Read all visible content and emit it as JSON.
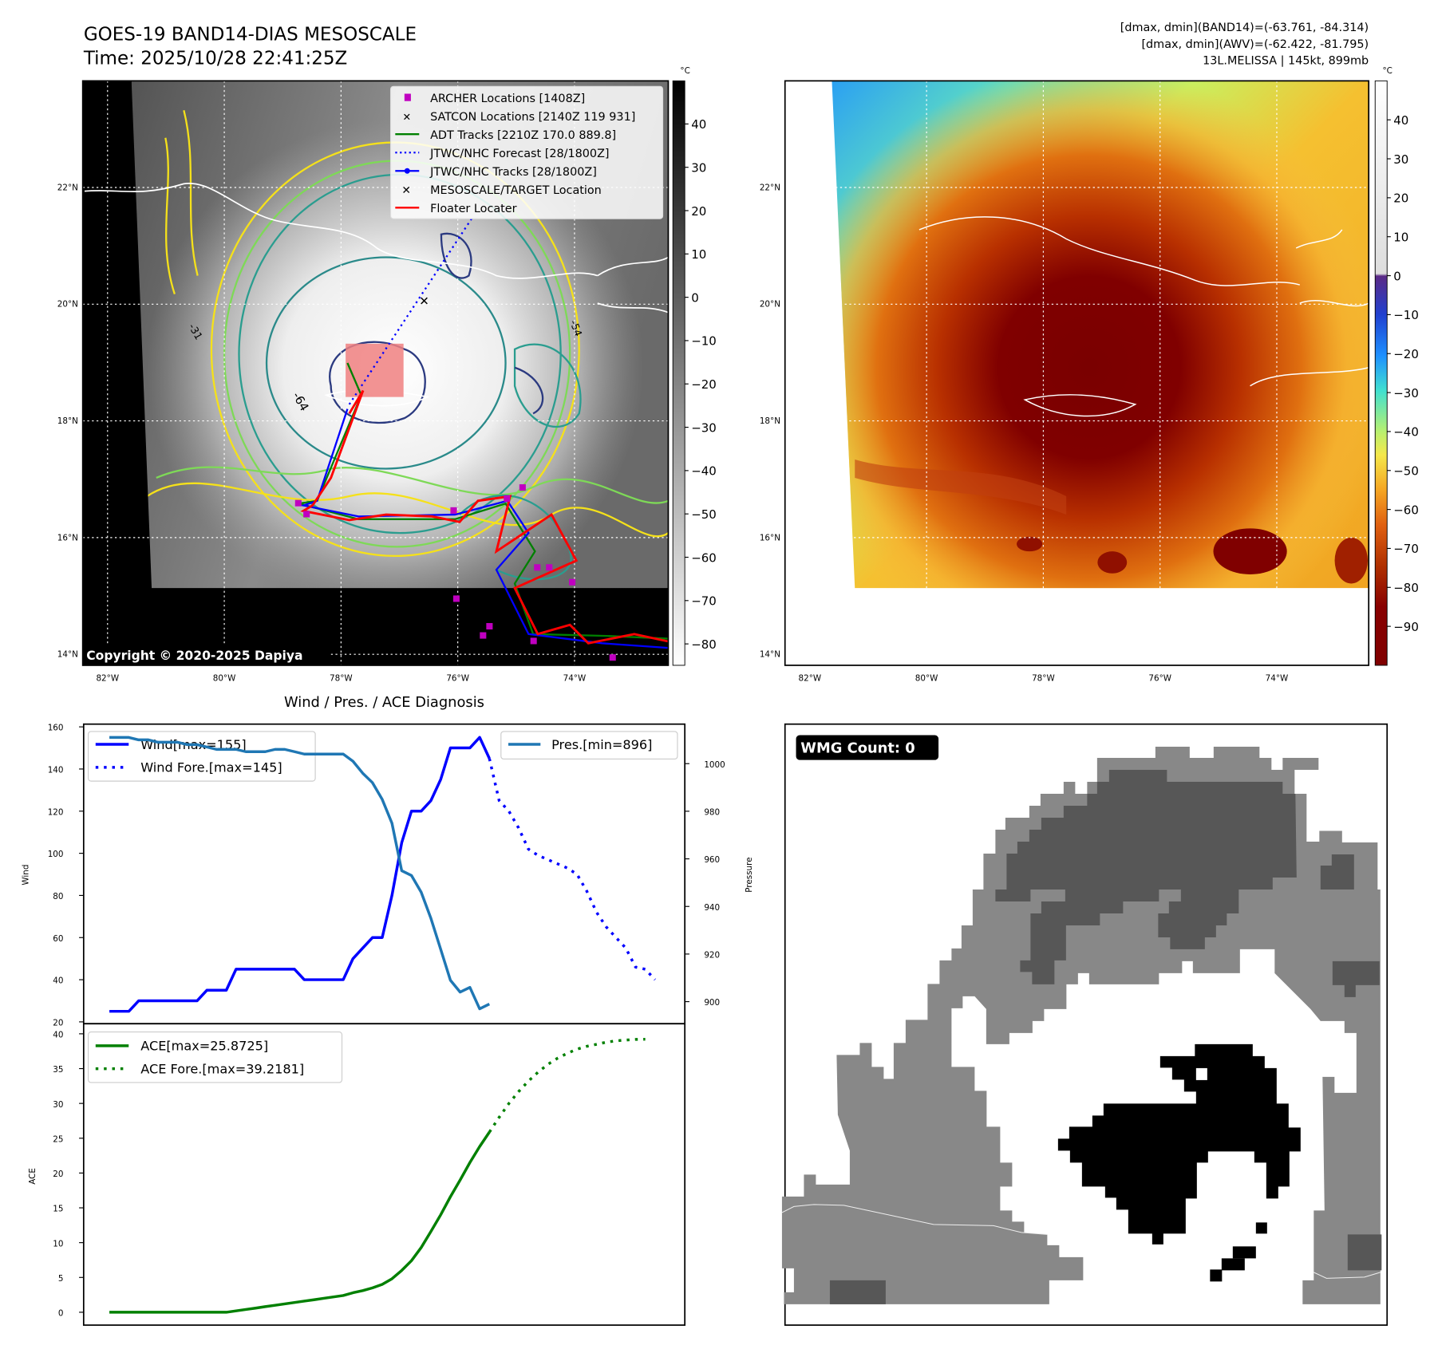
{
  "header": {
    "title_line1": "GOES-19 BAND14-DIAS MESOSCALE",
    "title_line2": "Time: 2025/10/28 22:41:25Z",
    "info_line1": "[dmax, dmin](BAND14)=(-63.761, -84.314)",
    "info_line2": "[dmax, dmin](AWV)=(-62.422, -81.795)",
    "info_line3": "13L.MELISSA | 145kt, 899mb"
  },
  "maps": {
    "lat_labels": [
      "22°N",
      "20°N",
      "18°N",
      "16°N",
      "14°N"
    ],
    "lon_labels": [
      "82°W",
      "80°W",
      "78°W",
      "76°W",
      "74°W"
    ],
    "copyright": "Copyright © 2020-2025 Dapiya",
    "contour_labels": [
      "-64",
      "-54",
      "-31"
    ],
    "legend": [
      {
        "label": "ARCHER Locations [1408Z]",
        "color": "#c000c0",
        "marker": "square"
      },
      {
        "label": "SATCON Locations [2140Z 119 931]",
        "color": "#17becf",
        "marker": "x"
      },
      {
        "label": "ADT Tracks [2210Z 170.0 889.8]",
        "color": "#008000",
        "marker": "line"
      },
      {
        "label": "JTWC/NHC Forecast [28/1800Z]",
        "color": "#0000ff",
        "marker": "dotted"
      },
      {
        "label": "JTWC/NHC Tracks [28/1800Z]",
        "color": "#0000ff",
        "marker": "line-dot"
      },
      {
        "label": "MESOSCALE/TARGET Location",
        "color": "#ff0000",
        "marker": "x"
      },
      {
        "label": "Floater Locater",
        "color": "#ff0000",
        "marker": "line"
      }
    ],
    "colorbar_left": {
      "unit": "°C",
      "ticks": [
        "40",
        "30",
        "20",
        "10",
        "0",
        "−10",
        "−20",
        "−30",
        "−40",
        "−50",
        "−60",
        "−70",
        "−80"
      ],
      "values": [
        40,
        30,
        20,
        10,
        0,
        -10,
        -20,
        -30,
        -40,
        -50,
        -60,
        -70,
        -80
      ]
    },
    "colorbar_right": {
      "unit": "°C",
      "ticks": [
        "40",
        "30",
        "20",
        "10",
        "0",
        "−10",
        "−20",
        "−30",
        "−40",
        "−50",
        "−60",
        "−70",
        "−80",
        "−90"
      ],
      "values": [
        40,
        30,
        20,
        10,
        0,
        -10,
        -20,
        -30,
        -40,
        -50,
        -60,
        -70,
        -80,
        -90
      ]
    }
  },
  "wmg": {
    "label": "WMG Count: 0"
  },
  "chart_data": [
    {
      "type": "line",
      "title": "Wind / Pres. / ACE Diagnosis",
      "ylabel": "Wind",
      "ylabel_right": "Pressure",
      "ylim": [
        20,
        160
      ],
      "ylim_right": [
        890,
        1016
      ],
      "yticks": [
        "160",
        "140",
        "120",
        "100",
        "80",
        "60",
        "40",
        "20"
      ],
      "yticks_values": [
        160,
        140,
        120,
        100,
        80,
        60,
        40,
        20
      ],
      "yticks_right": [
        "1000",
        "980",
        "960",
        "940",
        "920",
        "900"
      ],
      "yticks_right_values": [
        1000,
        980,
        960,
        940,
        920,
        900
      ],
      "series": [
        {
          "name": "Wind[max=155]",
          "color": "#0000ff",
          "style": "solid",
          "x_start": 0,
          "values": [
            25,
            25,
            25,
            30,
            30,
            30,
            30,
            30,
            30,
            30,
            35,
            35,
            35,
            45,
            45,
            45,
            45,
            45,
            45,
            45,
            40,
            40,
            40,
            40,
            40,
            50,
            55,
            60,
            60,
            80,
            105,
            120,
            120,
            125,
            135,
            150,
            150,
            150,
            155,
            145
          ]
        },
        {
          "name": "Wind Fore.[max=145]",
          "color": "#0000ff",
          "style": "dotted",
          "x_start": 39,
          "values": [
            145,
            125,
            120,
            112,
            102,
            99,
            97,
            95,
            93,
            90,
            82,
            72,
            65,
            60,
            55,
            46,
            45,
            40
          ]
        },
        {
          "name": "Pres.[min=896]",
          "color": "#1f77b4",
          "style": "solid",
          "axis": "right",
          "x_start": 0,
          "values": [
            1011,
            1011,
            1011,
            1010,
            1010,
            1009,
            1009,
            1009,
            1008,
            1008,
            1007,
            1006,
            1006,
            1006,
            1005,
            1005,
            1005,
            1006,
            1006,
            1005,
            1004,
            1004,
            1004,
            1004,
            1004,
            1001,
            996,
            992,
            985,
            975,
            955,
            953,
            946,
            935,
            922,
            909,
            904,
            906,
            897,
            899
          ]
        }
      ]
    },
    {
      "type": "line",
      "ylabel": "ACE",
      "ylim": [
        -2,
        40
      ],
      "yticks": [
        "40",
        "35",
        "30",
        "25",
        "20",
        "15",
        "10",
        "5",
        "0"
      ],
      "yticks_values": [
        40,
        35,
        30,
        25,
        20,
        15,
        10,
        5,
        0
      ],
      "series": [
        {
          "name": "ACE[max=25.8725]",
          "color": "#008000",
          "style": "solid",
          "x_start": 0,
          "values": [
            0,
            0,
            0,
            0,
            0,
            0,
            0,
            0,
            0,
            0,
            0,
            0,
            0,
            0.2,
            0.4,
            0.6,
            0.8,
            1.0,
            1.2,
            1.4,
            1.6,
            1.8,
            2.0,
            2.2,
            2.4,
            2.8,
            3.1,
            3.5,
            4.0,
            4.8,
            6.0,
            7.4,
            9.3,
            11.6,
            14.0,
            16.6,
            19.0,
            21.5,
            23.8,
            25.87
          ]
        },
        {
          "name": "ACE Fore.[max=39.2181]",
          "color": "#008000",
          "style": "dotted",
          "x_start": 39,
          "values": [
            25.87,
            28,
            30,
            31.7,
            33.2,
            34.5,
            35.6,
            36.5,
            37.2,
            37.8,
            38.2,
            38.5,
            38.8,
            39.0,
            39.1,
            39.2,
            39.22
          ]
        }
      ]
    }
  ]
}
